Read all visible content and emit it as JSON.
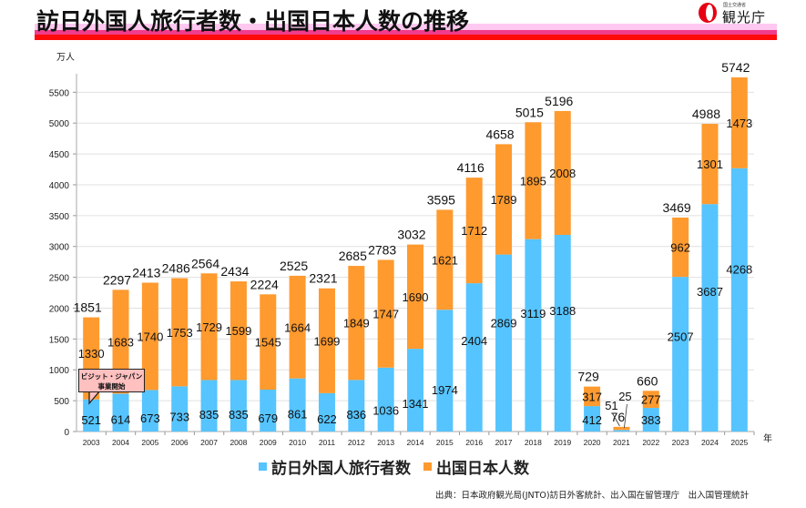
{
  "header": {
    "title": "訪日外国人旅行者数・出国日本人数の推移",
    "logo_ministry": "国土交通省",
    "logo_agency": "観光庁"
  },
  "colors": {
    "inbound": "#55c4ff",
    "outbound": "#ff9a2e",
    "title_red": "#ff0a0a",
    "title_pink": "#ffc8f0",
    "title_magenta": "#f03c8c",
    "callout_bg": "#ffc0c0"
  },
  "chart_data": {
    "type": "bar",
    "stacked": true,
    "title": "訪日外国人旅行者数・出国日本人数の推移",
    "ylabel": "万人",
    "xlabel": "年",
    "ylim": [
      0,
      5800
    ],
    "yticks": [
      0,
      500,
      1000,
      1500,
      2000,
      2500,
      3000,
      3500,
      4000,
      4500,
      5000,
      5500
    ],
    "grid": true,
    "legend_position": "bottom",
    "categories": [
      "2003",
      "2004",
      "2005",
      "2006",
      "2007",
      "2008",
      "2009",
      "2010",
      "2011",
      "2012",
      "2013",
      "2014",
      "2015",
      "2016",
      "2017",
      "2018",
      "2019",
      "2020",
      "2021",
      "2022",
      "2023",
      "2024",
      "2025"
    ],
    "series": [
      {
        "name": "訪日外国人旅行者数",
        "color": "#55c4ff",
        "values": [
          521,
          614,
          673,
          733,
          835,
          835,
          679,
          861,
          622,
          836,
          1036,
          1341,
          1974,
          2404,
          2869,
          3119,
          3188,
          412,
          25,
          383,
          2507,
          3687,
          4268
        ]
      },
      {
        "name": "出国日本人数",
        "color": "#ff9a2e",
        "values": [
          1330,
          1683,
          1740,
          1753,
          1729,
          1599,
          1545,
          1664,
          1699,
          1849,
          1747,
          1690,
          1621,
          1712,
          1789,
          1895,
          2008,
          317,
          51,
          277,
          962,
          1301,
          1473
        ]
      }
    ],
    "totals": [
      1851,
      2297,
      2413,
      2486,
      2564,
      2434,
      2224,
      2525,
      2321,
      2685,
      2783,
      3032,
      3595,
      4116,
      4658,
      5015,
      5196,
      729,
      76,
      660,
      3469,
      4988,
      5742
    ],
    "annotations": [
      {
        "category": "2003",
        "text_line1": "ビジット・ジャパン",
        "text_line2": "事業開始"
      }
    ]
  },
  "legend": {
    "items": [
      {
        "label": "訪日外国人旅行者数",
        "color": "#55c4ff"
      },
      {
        "label": "出国日本人数",
        "color": "#ff9a2e"
      }
    ]
  },
  "source": "出典：日本政府観光局(JNTO)訪日外客統計、出入国在留管理庁　出入国管理統計"
}
